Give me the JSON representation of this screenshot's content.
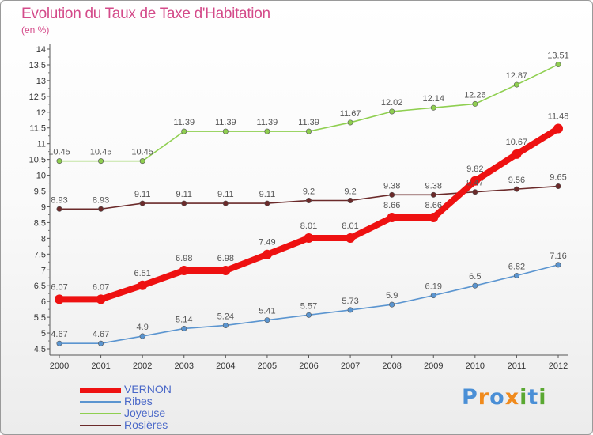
{
  "header": {
    "title": "Evolution du Taux de Taxe d'Habitation",
    "unit": "(en %)"
  },
  "brand": {
    "letters": [
      "P",
      "r",
      "o",
      "x",
      "i",
      "t",
      "i"
    ],
    "colors": [
      "#4a8fd6",
      "#f08a1c",
      "#4a8fd6",
      "#f08a1c",
      "#5aa832",
      "#4a8fd6",
      "#5aa832"
    ]
  },
  "chart_data": {
    "type": "line",
    "title": "Evolution du Taux de Taxe d'Habitation",
    "ylabel": "(en %)",
    "xlabel": "",
    "ylim": [
      4.5,
      14
    ],
    "ytick_step": 0.5,
    "grid": false,
    "legend_position": "bottom-left",
    "x": [
      "2000",
      "2001",
      "2002",
      "2003",
      "2004",
      "2005",
      "2006",
      "2007",
      "2008",
      "2009",
      "2010",
      "2011",
      "2012"
    ],
    "series": [
      {
        "name": "Joyeuse",
        "color": "#8fcf50",
        "values": [
          10.45,
          10.45,
          10.45,
          11.39,
          11.39,
          11.39,
          11.39,
          11.67,
          12.02,
          12.14,
          12.26,
          12.87,
          13.51
        ],
        "labels": [
          "10.45",
          "10.45",
          "10.45",
          "11.39",
          "11.39",
          "11.39",
          "11.39",
          "11.67",
          "12.02",
          "12.14",
          "12.26",
          "12.87",
          "13.51"
        ]
      },
      {
        "name": "Rosières",
        "color": "#6b2a2a",
        "values": [
          8.93,
          8.93,
          9.11,
          9.11,
          9.11,
          9.11,
          9.2,
          9.2,
          9.38,
          9.38,
          9.47,
          9.56,
          9.65
        ],
        "labels": [
          "8.93",
          "8.93",
          "9.11",
          "9.11",
          "9.11",
          "9.11",
          "9.2",
          "9.2",
          "9.38",
          "9.38",
          "9.47",
          "9.56",
          "9.65"
        ]
      },
      {
        "name": "Ribes",
        "color": "#5b95d0",
        "values": [
          4.67,
          4.67,
          4.9,
          5.14,
          5.24,
          5.41,
          5.57,
          5.73,
          5.9,
          6.19,
          6.5,
          6.82,
          7.16
        ],
        "labels": [
          "4.67",
          "4.67",
          "4.9",
          "5.14",
          "5.24",
          "5.41",
          "5.57",
          "5.73",
          "5.9",
          "6.19",
          "6.5",
          "6.82",
          "7.16"
        ]
      },
      {
        "name": "VERNON",
        "color": "#ee1111",
        "values": [
          6.07,
          6.07,
          6.51,
          6.98,
          6.98,
          7.49,
          8.01,
          8.01,
          8.66,
          8.66,
          9.82,
          10.67,
          11.48
        ],
        "labels": [
          "6.07",
          "6.07",
          "6.51",
          "6.98",
          "6.98",
          "7.49",
          "8.01",
          "8.01",
          "8.66",
          "8.66",
          "9.82",
          "10.67",
          "11.48"
        ]
      }
    ]
  },
  "legend": {
    "items": [
      {
        "label": "VERNON",
        "color": "#ee1111"
      },
      {
        "label": "Ribes",
        "color": "#5b95d0"
      },
      {
        "label": "Joyeuse",
        "color": "#8fcf50"
      },
      {
        "label": "Rosières",
        "color": "#6b2a2a"
      }
    ]
  }
}
